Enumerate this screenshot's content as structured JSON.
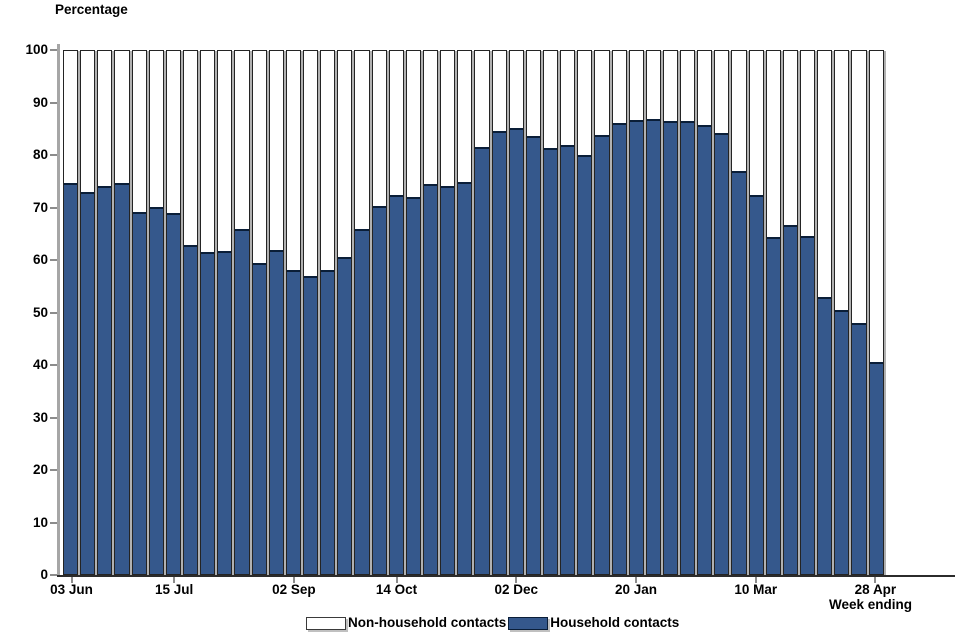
{
  "title": "Percentage",
  "x_axis": {
    "label": "Week ending",
    "tick_labels": [
      {
        "label": "03 Jun",
        "bar_index": 0
      },
      {
        "label": "15 Jul",
        "bar_index": 6
      },
      {
        "label": "02 Sep",
        "bar_index": 13
      },
      {
        "label": "14 Oct",
        "bar_index": 19
      },
      {
        "label": "02 Dec",
        "bar_index": 26
      },
      {
        "label": "20 Jan",
        "bar_index": 33
      },
      {
        "label": "10 Mar",
        "bar_index": 40
      },
      {
        "label": "28 Apr",
        "bar_index": 47
      }
    ]
  },
  "y_axis": {
    "title": "Percentage",
    "ticks": [
      0,
      10,
      20,
      30,
      40,
      50,
      60,
      70,
      80,
      90,
      100
    ]
  },
  "legend": [
    {
      "label": "Non-household contacts",
      "color": "#FFFFFF"
    },
    {
      "label": "Household contacts",
      "color": "#35588C"
    }
  ],
  "colors": {
    "household_fill": "#35588C",
    "household_border": "#0A1E38",
    "non_household_fill": "#FFFFFF",
    "bar_outline": "#242424",
    "axis_line_y": "#A6A6A6",
    "axis_line_x": "#2B2B2B",
    "tick_mark": "#8C8C8C",
    "text": "#000000"
  },
  "chart_data": {
    "type": "bar",
    "stacked": true,
    "unit": "percent",
    "title": "Percentage",
    "xlabel": "Week ending",
    "ylabel": "Percentage",
    "ylim": [
      0,
      100
    ],
    "grid": false,
    "legend_position": "bottom-center",
    "n_bars": 48,
    "x_tick_labels": [
      "03 Jun",
      "15 Jul",
      "02 Sep",
      "14 Oct",
      "02 Dec",
      "20 Jan",
      "10 Mar",
      "28 Apr"
    ],
    "x_tick_bar_indices": [
      0,
      6,
      13,
      19,
      26,
      33,
      40,
      47
    ],
    "series": [
      {
        "name": "Household contacts",
        "color": "#35588C",
        "values": [
          74.8,
          73.1,
          74.1,
          74.7,
          69.3,
          70.1,
          69.0,
          63.0,
          61.6,
          61.8,
          65.9,
          59.5,
          61.9,
          58.2,
          57.0,
          58.2,
          60.7,
          65.9,
          70.4,
          72.5,
          72.0,
          74.6,
          74.1,
          75.0,
          81.7,
          84.7,
          85.2,
          83.7,
          81.4,
          82.1,
          80.2,
          84.0,
          86.3,
          86.8,
          87.0,
          86.6,
          86.6,
          85.8,
          84.3,
          77.1,
          72.5,
          64.4,
          66.8,
          64.6,
          53.0,
          50.4,
          48.0,
          40.6
        ]
      },
      {
        "name": "Non-household contacts",
        "color": "#FFFFFF",
        "values": [
          25.2,
          26.9,
          25.9,
          25.3,
          30.7,
          29.9,
          31.0,
          37.0,
          38.4,
          38.2,
          34.1,
          40.5,
          38.1,
          41.8,
          43.0,
          41.8,
          39.3,
          34.1,
          29.6,
          27.5,
          28.0,
          25.4,
          25.9,
          25.0,
          18.3,
          15.3,
          14.8,
          16.3,
          18.6,
          17.9,
          19.8,
          16.0,
          13.7,
          13.2,
          13.0,
          13.4,
          13.4,
          14.2,
          15.7,
          22.9,
          27.5,
          35.6,
          33.2,
          35.4,
          47.0,
          49.6,
          52.0,
          59.4
        ]
      }
    ]
  }
}
